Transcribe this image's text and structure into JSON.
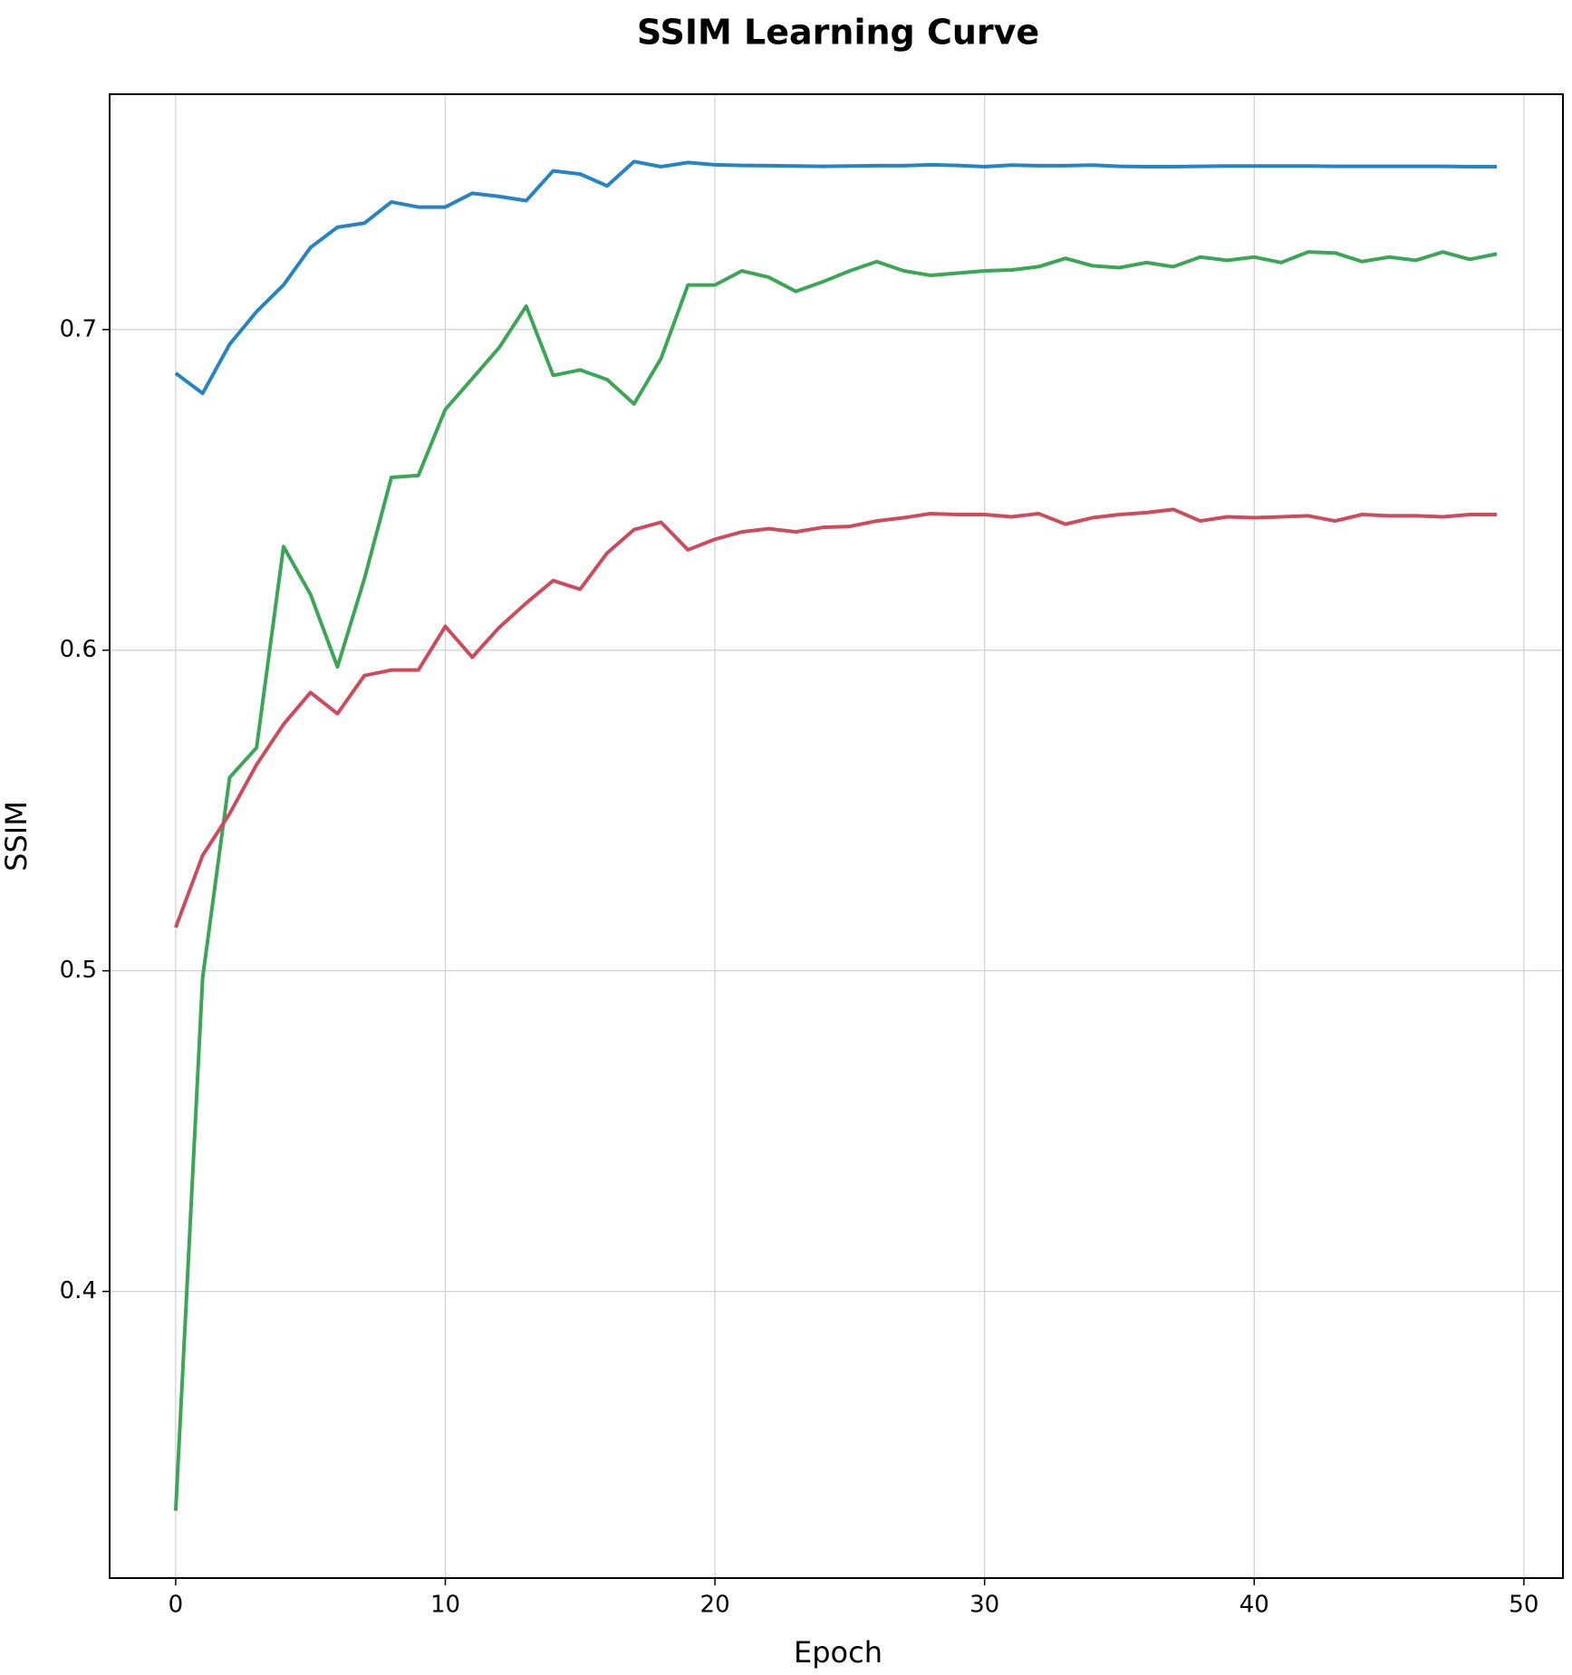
{
  "chart_data": {
    "type": "line",
    "title": "SSIM Learning Curve",
    "x_label": "Epoch",
    "y_label": "SSIM",
    "x": [
      0,
      1,
      2,
      3,
      4,
      5,
      6,
      7,
      8,
      9,
      10,
      11,
      12,
      13,
      14,
      15,
      16,
      17,
      18,
      19,
      20,
      21,
      22,
      23,
      24,
      25,
      26,
      27,
      28,
      29,
      30,
      31,
      32,
      33,
      34,
      35,
      36,
      37,
      38,
      39,
      40,
      41,
      42,
      43,
      44,
      45,
      46,
      47,
      48,
      49
    ],
    "series": [
      {
        "color": "#2484c6",
        "values": [
          0.6864,
          0.6801,
          0.6954,
          0.7056,
          0.7139,
          0.7256,
          0.7319,
          0.7332,
          0.7398,
          0.7382,
          0.7382,
          0.7425,
          0.7415,
          0.7402,
          0.7495,
          0.7485,
          0.7448,
          0.7524,
          0.7508,
          0.7521,
          0.7514,
          0.7512,
          0.7511,
          0.751,
          0.7509,
          0.751,
          0.7511,
          0.7511,
          0.7514,
          0.7512,
          0.7508,
          0.7513,
          0.7511,
          0.7511,
          0.7513,
          0.7509,
          0.7508,
          0.7508,
          0.7509,
          0.751,
          0.751,
          0.751,
          0.751,
          0.7509,
          0.7509,
          0.7509,
          0.7509,
          0.7509,
          0.7508,
          0.7508
        ]
      },
      {
        "color": "#3ba656",
        "values": [
          0.3316,
          0.4979,
          0.5603,
          0.5696,
          0.6323,
          0.6174,
          0.5948,
          0.6223,
          0.6539,
          0.6545,
          0.6751,
          0.6847,
          0.6944,
          0.7073,
          0.6857,
          0.6874,
          0.6844,
          0.6768,
          0.691,
          0.7139,
          0.7139,
          0.7183,
          0.7163,
          0.7119,
          0.7149,
          0.7183,
          0.7212,
          0.7183,
          0.7169,
          0.7176,
          0.7183,
          0.7186,
          0.7196,
          0.7222,
          0.7199,
          0.7193,
          0.7209,
          0.7196,
          0.7226,
          0.7216,
          0.7226,
          0.7209,
          0.7242,
          0.7239,
          0.7212,
          0.7226,
          0.7216,
          0.7242,
          0.7219,
          0.7236
        ]
      },
      {
        "color": "#cf4a5b",
        "values": [
          0.5135,
          0.536,
          0.549,
          0.5643,
          0.5769,
          0.5868,
          0.5802,
          0.5921,
          0.5938,
          0.5938,
          0.6074,
          0.5978,
          0.6071,
          0.6147,
          0.6217,
          0.619,
          0.6303,
          0.6376,
          0.6399,
          0.6313,
          0.6346,
          0.6369,
          0.6379,
          0.6369,
          0.6383,
          0.6386,
          0.6403,
          0.6413,
          0.6426,
          0.6423,
          0.6423,
          0.6416,
          0.6426,
          0.6393,
          0.6413,
          0.6423,
          0.6429,
          0.6439,
          0.6403,
          0.6416,
          0.6413,
          0.6416,
          0.6419,
          0.6403,
          0.6423,
          0.6419,
          0.6419,
          0.6416,
          0.6423,
          0.6423
        ]
      }
    ],
    "xlim": [
      -2.45,
      51.45
    ],
    "xticks": [
      0,
      10,
      20,
      30,
      40,
      50
    ],
    "ylim": [
      0.3106,
      0.7734
    ],
    "yticks": [
      0.4,
      0.5,
      0.6,
      0.7
    ],
    "grid": true
  }
}
